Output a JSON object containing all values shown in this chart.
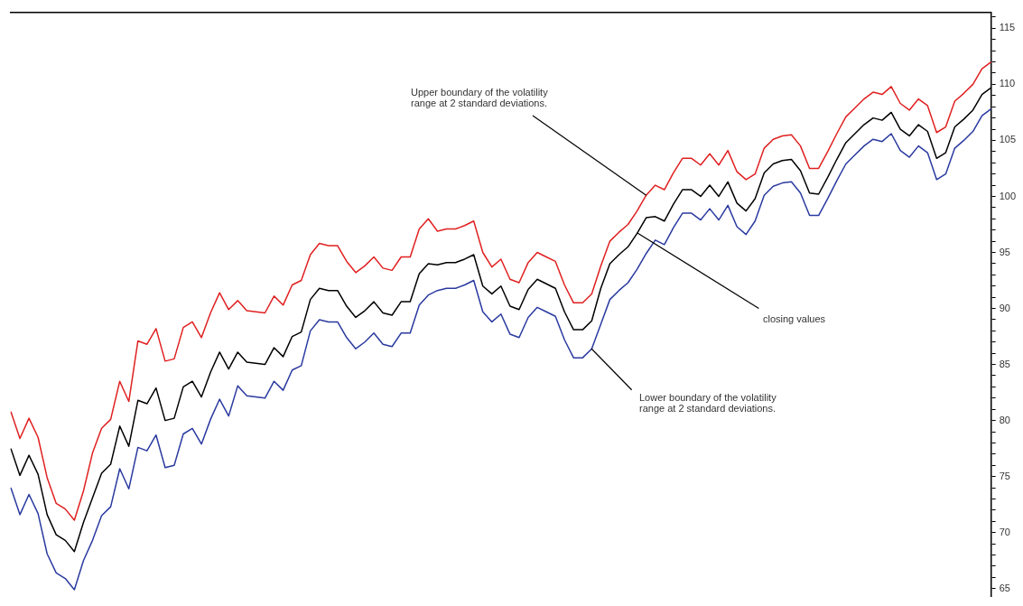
{
  "chart_data": {
    "type": "line",
    "categories": [
      null,
      null,
      null,
      null,
      null,
      null,
      null,
      null,
      null,
      null,
      null,
      null,
      null,
      null,
      null,
      null,
      null,
      null,
      null,
      null,
      null,
      null,
      null,
      null,
      null,
      null,
      null,
      null,
      null,
      null,
      null,
      null,
      null,
      null,
      null,
      null,
      null,
      null,
      null,
      null,
      null,
      null,
      null,
      null,
      null,
      null,
      null,
      null,
      null,
      null,
      null,
      null,
      null,
      null,
      null,
      null,
      null,
      null,
      null,
      null,
      null,
      null,
      null,
      null,
      null,
      null,
      null,
      null,
      null,
      null,
      null,
      null,
      null,
      null,
      null,
      null,
      null,
      null,
      null,
      null,
      null,
      null,
      null,
      null,
      null,
      null,
      null,
      null,
      null,
      null,
      null,
      null,
      null,
      null,
      null,
      null,
      null,
      null,
      null,
      null,
      null,
      null,
      null,
      null,
      null,
      null,
      null,
      null,
      null
    ],
    "series": [
      {
        "color": "#e02020",
        "values": [
          80.8,
          78.4,
          80.2,
          78.5,
          74.9,
          72.6,
          72.1,
          71.1,
          73.7,
          77.1,
          79.3,
          80.1,
          83.5,
          81.7,
          87.1,
          86.8,
          88.2,
          85.3,
          85.5,
          88.3,
          88.8,
          87.4,
          89.6,
          91.4,
          89.9,
          90.7,
          89.8,
          89.7,
          89.6,
          91.1,
          90.3,
          92.1,
          92.5,
          94.8,
          95.8,
          95.6,
          95.6,
          94.2,
          93.2,
          93.8,
          94.6,
          93.6,
          93.4,
          94.6,
          94.6,
          97.1,
          98.0,
          96.9,
          97.1,
          97.1,
          97.4,
          97.8,
          95.0,
          93.7,
          94.4,
          92.6,
          92.3,
          94.1,
          95.0,
          94.6,
          94.2,
          92.1,
          90.5,
          90.5,
          91.3,
          93.8,
          96.0,
          96.8,
          97.5,
          98.7,
          100.1,
          101.0,
          100.6,
          102.1,
          103.4,
          103.4,
          102.8,
          103.8,
          102.8,
          104.1,
          102.2,
          101.5,
          102.0,
          104.3,
          105.1,
          105.4,
          105.5,
          104.5,
          102.5,
          102.5,
          104.0,
          105.6,
          107.1,
          107.9,
          108.7,
          109.3,
          109.1,
          109.8,
          108.3,
          107.7,
          108.7,
          108.1,
          105.7,
          106.2,
          108.5,
          109.2,
          110.0,
          111.4,
          112.0
        ]
      },
      {
        "color": "#000000",
        "values": [
          77.5,
          75.1,
          76.9,
          75.2,
          71.6,
          69.8,
          69.3,
          68.3,
          70.9,
          73.1,
          75.3,
          76.1,
          79.5,
          77.7,
          81.8,
          81.5,
          82.9,
          80.0,
          80.2,
          83.0,
          83.5,
          82.1,
          84.3,
          86.1,
          84.6,
          86.1,
          85.2,
          85.1,
          85.0,
          86.5,
          85.7,
          87.5,
          87.9,
          90.8,
          91.8,
          91.6,
          91.6,
          90.2,
          89.2,
          89.8,
          90.6,
          89.6,
          89.4,
          90.6,
          90.6,
          93.1,
          94.0,
          93.9,
          94.1,
          94.1,
          94.4,
          94.8,
          92.0,
          91.3,
          92.0,
          90.2,
          89.9,
          91.7,
          92.6,
          92.2,
          91.8,
          89.7,
          88.1,
          88.1,
          88.9,
          91.8,
          94.0,
          94.8,
          95.5,
          96.7,
          98.1,
          98.2,
          97.8,
          99.3,
          100.6,
          100.6,
          100.0,
          101.0,
          100.0,
          101.3,
          99.4,
          98.7,
          99.8,
          102.1,
          102.9,
          103.2,
          103.3,
          102.3,
          100.3,
          100.2,
          101.7,
          103.3,
          104.8,
          105.6,
          106.4,
          107.0,
          106.8,
          107.5,
          106.0,
          105.4,
          106.4,
          105.8,
          103.4,
          103.9,
          106.2,
          106.9,
          107.7,
          109.1,
          109.7
        ]
      },
      {
        "color": "#2a3aa0",
        "values": [
          74.0,
          71.6,
          73.4,
          71.7,
          68.1,
          66.4,
          65.9,
          64.9,
          67.5,
          69.3,
          71.5,
          72.3,
          75.7,
          73.9,
          77.6,
          77.3,
          78.7,
          75.8,
          76.0,
          78.8,
          79.3,
          77.9,
          80.1,
          81.9,
          80.4,
          83.1,
          82.2,
          82.1,
          82.0,
          83.5,
          82.7,
          84.5,
          84.9,
          88.0,
          89.0,
          88.8,
          88.8,
          87.4,
          86.4,
          87.0,
          87.8,
          86.8,
          86.6,
          87.8,
          87.8,
          90.3,
          91.2,
          91.6,
          91.8,
          91.8,
          92.1,
          92.5,
          89.7,
          88.8,
          89.5,
          87.7,
          87.4,
          89.2,
          90.1,
          89.7,
          89.3,
          87.2,
          85.6,
          85.6,
          86.4,
          88.6,
          90.8,
          91.6,
          92.3,
          93.5,
          94.9,
          96.1,
          95.7,
          97.2,
          98.5,
          98.5,
          97.9,
          98.9,
          97.9,
          99.2,
          97.3,
          96.6,
          97.8,
          100.1,
          100.9,
          101.2,
          101.3,
          100.3,
          98.3,
          98.3,
          99.8,
          101.4,
          102.9,
          103.7,
          104.5,
          105.1,
          104.9,
          105.6,
          104.1,
          103.5,
          104.5,
          103.9,
          101.5,
          102.0,
          104.3,
          105.0,
          105.8,
          107.2,
          107.8
        ]
      }
    ],
    "ylim": [
      64.3,
      116.4
    ],
    "yticks": [
      65,
      {
        "value": 66,
        "label": null
      },
      {
        "value": 67,
        "label": null
      },
      {
        "value": 68,
        "label": null
      },
      {
        "value": 69,
        "label": null
      },
      70,
      {
        "value": 71,
        "label": null
      },
      {
        "value": 72,
        "label": null
      },
      {
        "value": 73,
        "label": null
      },
      {
        "value": 74,
        "label": null
      },
      75,
      {
        "value": 76,
        "label": null
      },
      {
        "value": 77,
        "label": null
      },
      {
        "value": 78,
        "label": null
      },
      {
        "value": 79,
        "label": null
      },
      80,
      {
        "value": 81,
        "label": null
      },
      {
        "value": 82,
        "label": null
      },
      {
        "value": 83,
        "label": null
      },
      {
        "value": 84,
        "label": null
      },
      85,
      {
        "value": 86,
        "label": null
      },
      {
        "value": 87,
        "label": null
      },
      {
        "value": 88,
        "label": null
      },
      {
        "value": 89,
        "label": null
      },
      90,
      {
        "value": 91,
        "label": null
      },
      {
        "value": 92,
        "label": null
      },
      {
        "value": 93,
        "label": null
      },
      {
        "value": 94,
        "label": null
      },
      95,
      {
        "value": 96,
        "label": null
      },
      {
        "value": 97,
        "label": null
      },
      {
        "value": 98,
        "label": null
      },
      {
        "value": 99,
        "label": null
      },
      100,
      {
        "value": 101,
        "label": null
      },
      {
        "value": 102,
        "label": null
      },
      {
        "value": 103,
        "label": null
      },
      {
        "value": 104,
        "label": null
      },
      105,
      {
        "value": 106,
        "label": null
      },
      {
        "value": 107,
        "label": null
      },
      {
        "value": 108,
        "label": null
      },
      {
        "value": 109,
        "label": null
      },
      110,
      {
        "value": 111,
        "label": null
      },
      {
        "value": 112,
        "label": null
      },
      {
        "value": 113,
        "label": null
      },
      {
        "value": 114,
        "label": null
      },
      115,
      {
        "value": 116,
        "label": null
      }
    ],
    "tick_labels": "y",
    "grid": false,
    "legend": false,
    "marker": "none",
    "line_style": "solid",
    "annotations": [
      "Upper boundary of the volatility\nrange at 2 standard deviations.",
      "closing values",
      "Lower boundary of the volatility\nrange at 2 standard deviations."
    ]
  }
}
